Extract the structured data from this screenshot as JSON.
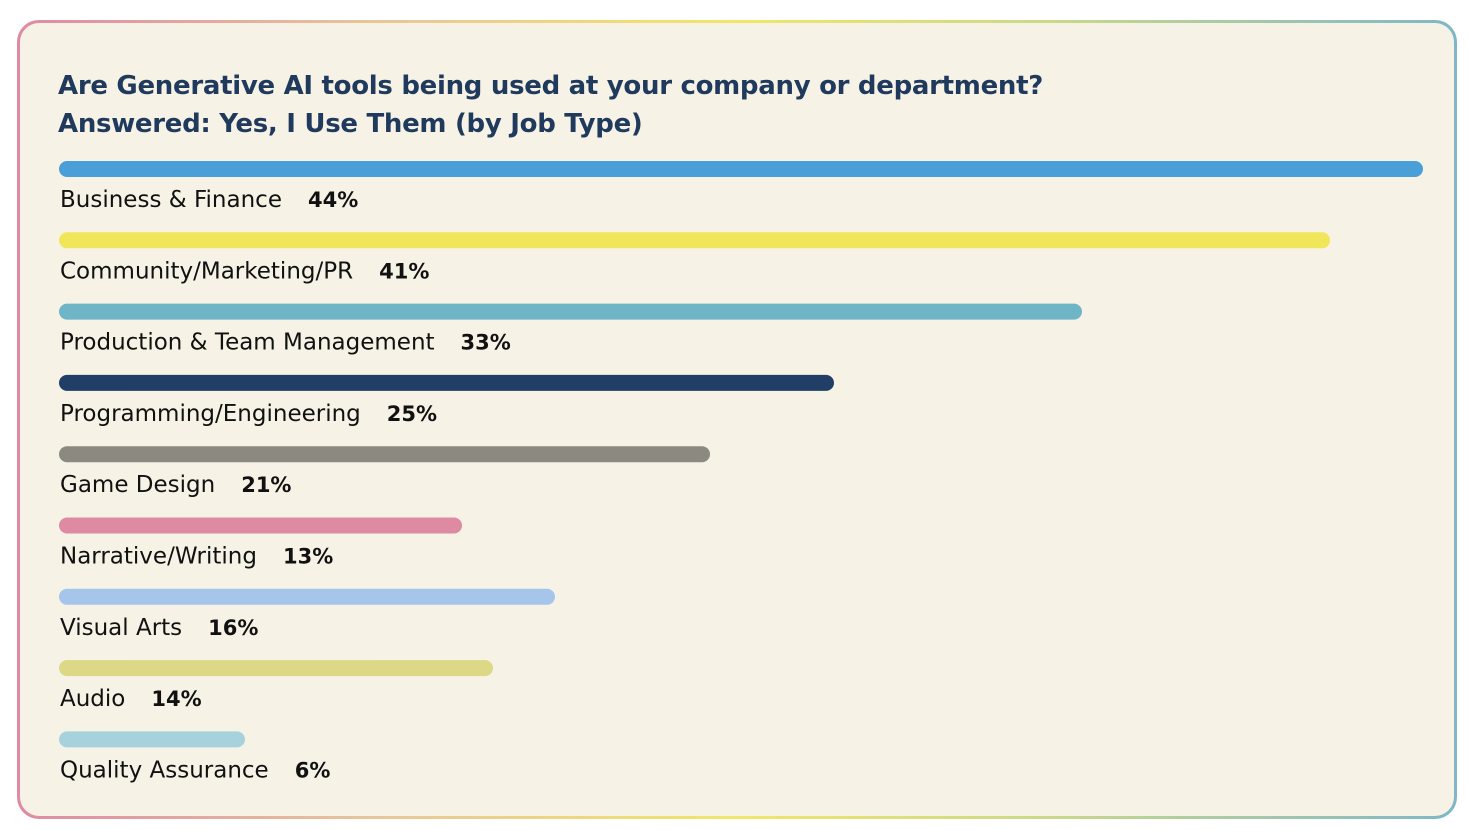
{
  "chart_data": {
    "type": "bar",
    "orientation": "horizontal",
    "title": "Are Generative AI tools being used at your company or department?",
    "subtitle": "Answered: Yes, I Use Them (by Job Type)",
    "categories": [
      "Business & Finance",
      "Community/Marketing/PR",
      "Production & Team Management",
      "Programming/Engineering",
      "Game Design",
      "Narrative/Writing",
      "Visual Arts",
      "Audio",
      "Quality Assurance"
    ],
    "values": [
      44,
      41,
      33,
      25,
      21,
      13,
      16,
      14,
      6
    ],
    "value_labels": [
      "44%",
      "41%",
      "33%",
      "25%",
      "21%",
      "13%",
      "16%",
      "14%",
      "6%"
    ],
    "colors": [
      "#4a9fd8",
      "#f1e55a",
      "#6fb5c8",
      "#213f66",
      "#8a8a80",
      "#de8aa3",
      "#a6c5ea",
      "#dcd886",
      "#a8d1de"
    ],
    "xlim": [
      0,
      44
    ],
    "grid": false,
    "legend": "none"
  }
}
